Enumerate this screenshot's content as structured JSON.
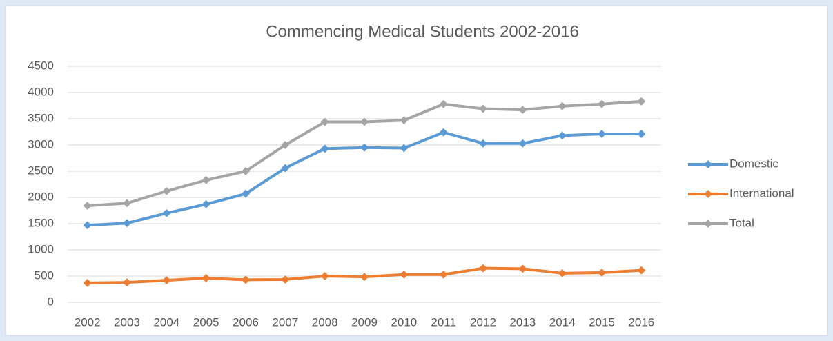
{
  "chart_data": {
    "type": "line",
    "title": "Commencing Medical Students 2002-2016",
    "categories": [
      "2002",
      "2003",
      "2004",
      "2005",
      "2006",
      "2007",
      "2008",
      "2009",
      "2010",
      "2011",
      "2012",
      "2013",
      "2014",
      "2015",
      "2016"
    ],
    "series": [
      {
        "name": "Domestic",
        "color": "#5b9bd5",
        "values": [
          1470,
          1510,
          1700,
          1870,
          2070,
          2560,
          2930,
          2950,
          2940,
          3240,
          3030,
          3030,
          3180,
          3210,
          3210
        ]
      },
      {
        "name": "International",
        "color": "#ed7d31",
        "values": [
          370,
          380,
          420,
          460,
          430,
          435,
          500,
          485,
          530,
          530,
          650,
          640,
          555,
          565,
          610
        ]
      },
      {
        "name": "Total",
        "color": "#a5a5a5",
        "values": [
          1840,
          1890,
          2120,
          2330,
          2500,
          3000,
          3440,
          3440,
          3470,
          3780,
          3690,
          3670,
          3740,
          3780,
          3830
        ]
      }
    ],
    "ylim": [
      0,
      4500
    ],
    "yticks": [
      0,
      500,
      1000,
      1500,
      2000,
      2500,
      3000,
      3500,
      4000,
      4500
    ],
    "grid": true,
    "legend": "right"
  }
}
